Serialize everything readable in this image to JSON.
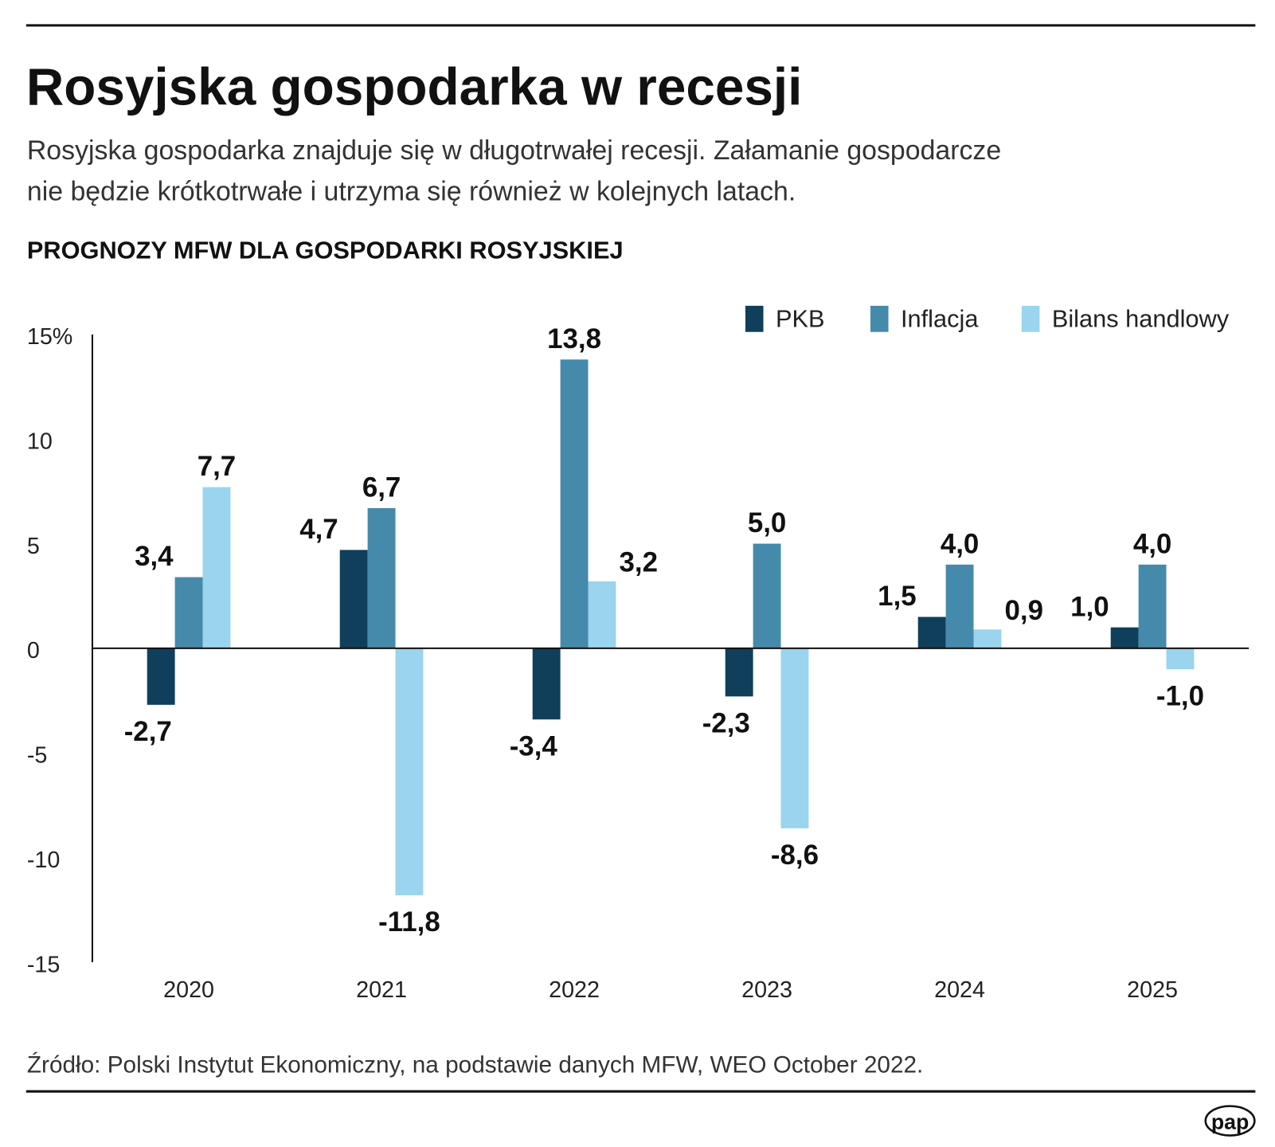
{
  "header": {
    "title": "Rosyjska gospodarka w recesji",
    "subtitle_line1": "Rosyjska gospodarka znajduje się w długotrwałej recesji. Załamanie gospodarcze",
    "subtitle_line2": "nie będzie krótkotrwałe i utrzyma się również w kolejnych latach."
  },
  "footer": {
    "source": "Źródło: Polski Instytut Ekonomiczny, na podstawie danych MFW, WEO October 2022.",
    "logo": "pap"
  },
  "chart_data": {
    "type": "bar",
    "title": "PROGNOZY MFW DLA GOSPODARKI ROSYJSKIEJ",
    "categories": [
      "2020",
      "2021",
      "2022",
      "2023",
      "2024",
      "2025"
    ],
    "series": [
      {
        "name": "PKB",
        "color": "#0f3f5a",
        "values": [
          -2.7,
          4.7,
          -3.4,
          -2.3,
          1.5,
          1.0
        ],
        "labels": [
          "-2,7",
          "4,7",
          "-3,4",
          "-2,3",
          "1,5",
          "1,0"
        ]
      },
      {
        "name": "Inflacja",
        "color": "#468aab",
        "values": [
          3.4,
          6.7,
          13.8,
          5.0,
          4.0,
          4.0
        ],
        "labels": [
          "3,4",
          "6,7",
          "13,8",
          "5,0",
          "4,0",
          "4,0"
        ]
      },
      {
        "name": "Bilans handlowy",
        "color": "#9ad4ee",
        "values": [
          7.7,
          -11.8,
          3.2,
          -8.6,
          0.9,
          -1.0
        ],
        "labels": [
          "7,7",
          "-11,8",
          "3,2",
          "-8,6",
          "0,9",
          "-1,0"
        ]
      }
    ],
    "yticks": [
      "15%",
      "10",
      "5",
      "0",
      "-5",
      "-10",
      "-15"
    ],
    "ylim": [
      -15,
      15
    ],
    "grid": false,
    "legend": "top-right"
  }
}
